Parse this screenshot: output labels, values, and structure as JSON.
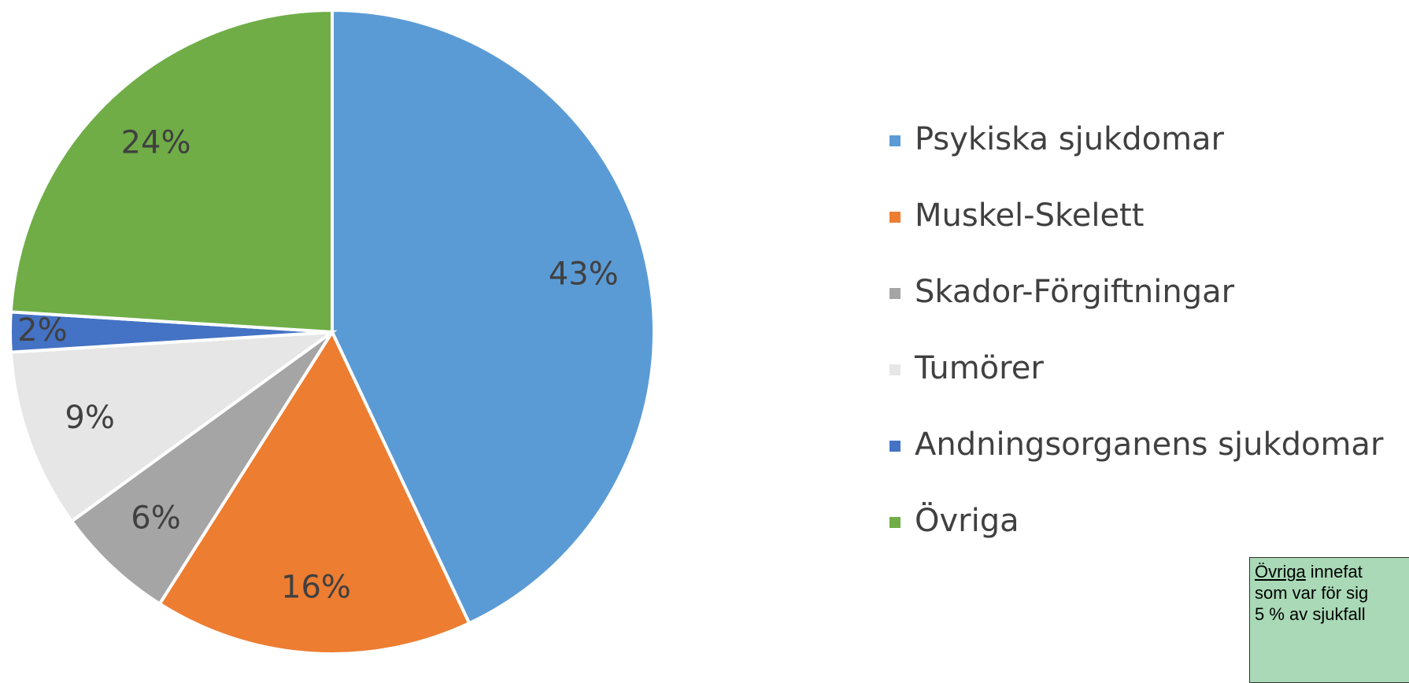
{
  "chart_data": {
    "type": "pie",
    "categories": [
      "Psykiska sjukdomar",
      "Muskel-Skelett",
      "Skador-Förgiftningar",
      "Tumörer",
      "Andningsorganens sjukdomar",
      "Övriga"
    ],
    "values": [
      43,
      16,
      6,
      9,
      2,
      24
    ],
    "value_labels": [
      "43%",
      "16%",
      "6%",
      "9%",
      "2%",
      "24%"
    ],
    "colors": [
      "#5b9bd5",
      "#ed7d31",
      "#a5a5a5",
      "#e7e6e6",
      "#4472c4",
      "#70ad47"
    ],
    "legend": "right"
  },
  "note": {
    "emphasis": "Övriga",
    "lines": [
      "innefat",
      "som var för sig",
      "5 % av sjukfall"
    ]
  }
}
